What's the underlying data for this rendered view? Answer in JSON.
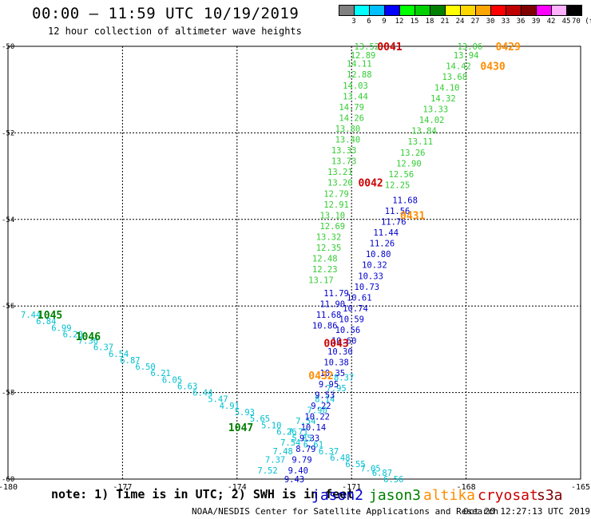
{
  "header": {
    "title": "00:00 – 11:59 UTC 10/19/2019",
    "subtitle": "12 hour collection of altimeter wave heights"
  },
  "color_scale": {
    "labels": [
      "3",
      "6",
      "9",
      "12",
      "15",
      "18",
      "21",
      "24",
      "27",
      "30",
      "33",
      "36",
      "39",
      "42",
      "45",
      "70 (ft)"
    ],
    "colors": [
      "#808080",
      "#00ffff",
      "#00bfff",
      "#0000ff",
      "#00ff00",
      "#00d000",
      "#008000",
      "#ffff00",
      "#ffd700",
      "#ffa500",
      "#ff0000",
      "#c00000",
      "#800000",
      "#ff00ff",
      "#ffb0ff",
      "#000000"
    ]
  },
  "footer": {
    "note": "note: 1) Time is in UTC; 2) SWH is in feet",
    "credit": "NOAA/NESDIS Center for Satellite Applications and Research",
    "timestamp": "Oct 20 12:27:13 UTC 2019"
  },
  "legend": [
    {
      "name": "jason2",
      "color": "#0000cc"
    },
    {
      "name": "jason3",
      "color": "#008000"
    },
    {
      "name": "altika",
      "color": "#ff8c00"
    },
    {
      "name": "cryosat",
      "color": "#cc0000"
    },
    {
      "name": "s3a",
      "color": "#800000"
    }
  ],
  "chart_data": {
    "type": "scatter",
    "title": "00:00 – 11:59 UTC 10/19/2019",
    "xlim": [
      -180,
      -165
    ],
    "ylim": [
      -60,
      -50
    ],
    "x_ticks": [
      "-180",
      "-177",
      "-174",
      "-171",
      "-168",
      "-165"
    ],
    "y_ticks": [
      "-50",
      "-52",
      "-54",
      "-56",
      "-58",
      "-60"
    ],
    "grid": true,
    "pass_labels": [
      {
        "text": "0041",
        "x": -170.0,
        "y": -50.0,
        "color": "#cc0000"
      },
      {
        "text": "0429",
        "x": -166.9,
        "y": -50.0,
        "color": "#ff8c00"
      },
      {
        "text": "0430",
        "x": -167.3,
        "y": -50.45,
        "color": "#ff8c00"
      },
      {
        "text": "0042",
        "x": -170.5,
        "y": -53.15,
        "color": "#cc0000"
      },
      {
        "text": "0431",
        "x": -169.4,
        "y": -53.9,
        "color": "#ff8c00"
      },
      {
        "text": "0043",
        "x": -171.4,
        "y": -56.85,
        "color": "#cc0000"
      },
      {
        "text": "0432",
        "x": -171.8,
        "y": -57.6,
        "color": "#ff8c00"
      },
      {
        "text": "1045",
        "x": -178.9,
        "y": -56.2,
        "color": "#008000"
      },
      {
        "text": "1046",
        "x": -177.9,
        "y": -56.7,
        "color": "#008000"
      },
      {
        "text": "1047",
        "x": -173.9,
        "y": -58.8,
        "color": "#008000"
      }
    ],
    "series": [
      {
        "color": "#00c0d0",
        "points": [
          {
            "x": -179.4,
            "y": -56.2,
            "v": "7.44"
          },
          {
            "x": -179.0,
            "y": -56.35,
            "v": "6.84"
          },
          {
            "x": -178.6,
            "y": -56.5,
            "v": "6.99"
          },
          {
            "x": -178.3,
            "y": -56.65,
            "v": "6.20"
          },
          {
            "x": -177.9,
            "y": -56.8,
            "v": "7.36"
          },
          {
            "x": -177.5,
            "y": -56.95,
            "v": "6.37"
          },
          {
            "x": -177.1,
            "y": -57.1,
            "v": "6.54"
          },
          {
            "x": -176.8,
            "y": -57.25,
            "v": "6.87"
          },
          {
            "x": -176.4,
            "y": -57.4,
            "v": "6.50"
          },
          {
            "x": -176.0,
            "y": -57.55,
            "v": "6.21"
          },
          {
            "x": -175.7,
            "y": -57.7,
            "v": "6.05"
          },
          {
            "x": -175.3,
            "y": -57.85,
            "v": "6.63"
          },
          {
            "x": -174.9,
            "y": -58.0,
            "v": "6.44"
          },
          {
            "x": -174.5,
            "y": -58.15,
            "v": "5.47"
          },
          {
            "x": -174.2,
            "y": -58.3,
            "v": "4.91"
          },
          {
            "x": -173.8,
            "y": -58.45,
            "v": "5.93"
          },
          {
            "x": -173.4,
            "y": -58.6,
            "v": "5.65"
          },
          {
            "x": -173.1,
            "y": -58.75,
            "v": "5.10"
          },
          {
            "x": -172.7,
            "y": -58.9,
            "v": "6.26"
          },
          {
            "x": -172.3,
            "y": -59.05,
            "v": "5.85"
          },
          {
            "x": -172.0,
            "y": -59.2,
            "v": "6.61"
          },
          {
            "x": -171.6,
            "y": -59.35,
            "v": "6.37"
          },
          {
            "x": -171.3,
            "y": -59.5,
            "v": "6.48"
          },
          {
            "x": -170.9,
            "y": -59.65,
            "v": "6.55"
          },
          {
            "x": -170.5,
            "y": -59.75,
            "v": "7.05"
          },
          {
            "x": -170.2,
            "y": -59.85,
            "v": "6.87"
          },
          {
            "x": -169.9,
            "y": -60.0,
            "v": "6.56"
          }
        ]
      },
      {
        "color": "#00c0d0",
        "points": [
          {
            "x": -171.2,
            "y": -57.65,
            "v": "8.37"
          },
          {
            "x": -171.4,
            "y": -57.9,
            "v": "7.95"
          },
          {
            "x": -171.7,
            "y": -58.15,
            "v": "8.14"
          },
          {
            "x": -171.9,
            "y": -58.4,
            "v": "7.90"
          },
          {
            "x": -172.2,
            "y": -58.65,
            "v": "7.54"
          },
          {
            "x": -172.4,
            "y": -58.9,
            "v": "7.71"
          },
          {
            "x": -172.6,
            "y": -59.15,
            "v": "7.54"
          },
          {
            "x": -172.8,
            "y": -59.35,
            "v": "7.48"
          },
          {
            "x": -173.0,
            "y": -59.55,
            "v": "7.37"
          },
          {
            "x": -173.2,
            "y": -59.8,
            "v": "7.52"
          }
        ]
      },
      {
        "color": "#0000cc",
        "points": [
          {
            "x": -169.6,
            "y": -53.55,
            "v": "11.68"
          },
          {
            "x": -169.8,
            "y": -53.8,
            "v": "11.56"
          },
          {
            "x": -169.9,
            "y": -54.05,
            "v": "11.76"
          },
          {
            "x": -170.1,
            "y": -54.3,
            "v": "11.44"
          },
          {
            "x": -170.2,
            "y": -54.55,
            "v": "11.26"
          },
          {
            "x": -170.3,
            "y": -54.8,
            "v": "10.80"
          },
          {
            "x": -170.4,
            "y": -55.05,
            "v": "10.32"
          },
          {
            "x": -170.5,
            "y": -55.3,
            "v": "10.33"
          },
          {
            "x": -170.6,
            "y": -55.55,
            "v": "10.73"
          },
          {
            "x": -170.8,
            "y": -55.8,
            "v": "10.61"
          },
          {
            "x": -170.9,
            "y": -56.05,
            "v": "10.74"
          },
          {
            "x": -171.0,
            "y": -56.3,
            "v": "10.59"
          },
          {
            "x": -171.1,
            "y": -56.55,
            "v": "10.56"
          },
          {
            "x": -171.2,
            "y": -56.8,
            "v": "10.60"
          },
          {
            "x": -171.3,
            "y": -57.05,
            "v": "10.30"
          },
          {
            "x": -171.4,
            "y": -57.3,
            "v": "10.38"
          },
          {
            "x": -171.5,
            "y": -57.55,
            "v": "10.35"
          },
          {
            "x": -171.6,
            "y": -57.8,
            "v": "9.95"
          },
          {
            "x": -171.7,
            "y": -58.05,
            "v": "9.53"
          },
          {
            "x": -171.8,
            "y": -58.3,
            "v": "9.22"
          },
          {
            "x": -171.9,
            "y": -58.55,
            "v": "10.22"
          },
          {
            "x": -172.0,
            "y": -58.8,
            "v": "10.14"
          },
          {
            "x": -172.1,
            "y": -59.05,
            "v": "9.33"
          },
          {
            "x": -172.2,
            "y": -59.3,
            "v": "8.79"
          },
          {
            "x": -172.3,
            "y": -59.55,
            "v": "9.79"
          },
          {
            "x": -172.4,
            "y": -59.8,
            "v": "9.40"
          },
          {
            "x": -172.5,
            "y": -60.0,
            "v": "9.43"
          }
        ]
      },
      {
        "color": "#33cc33",
        "points": [
          {
            "x": -170.6,
            "y": -50.0,
            "v": "13.52"
          },
          {
            "x": -170.7,
            "y": -50.2,
            "v": "12.89"
          },
          {
            "x": -170.8,
            "y": -50.4,
            "v": "14.11"
          },
          {
            "x": -170.8,
            "y": -50.65,
            "v": "12.88"
          },
          {
            "x": -170.9,
            "y": -50.9,
            "v": "14.03"
          },
          {
            "x": -170.9,
            "y": -51.15,
            "v": "13.44"
          },
          {
            "x": -171.0,
            "y": -51.4,
            "v": "14.79"
          },
          {
            "x": -171.0,
            "y": -51.65,
            "v": "14.26"
          },
          {
            "x": -171.1,
            "y": -51.9,
            "v": "13.80"
          },
          {
            "x": -171.1,
            "y": -52.15,
            "v": "13.40"
          },
          {
            "x": -171.2,
            "y": -52.4,
            "v": "13.33"
          },
          {
            "x": -171.2,
            "y": -52.65,
            "v": "13.73"
          },
          {
            "x": -171.3,
            "y": -52.9,
            "v": "13.21"
          },
          {
            "x": -171.3,
            "y": -53.15,
            "v": "13.20"
          },
          {
            "x": -171.4,
            "y": -53.4,
            "v": "12.79"
          },
          {
            "x": -171.4,
            "y": -53.65,
            "v": "12.91"
          },
          {
            "x": -171.5,
            "y": -53.9,
            "v": "13.10"
          },
          {
            "x": -171.5,
            "y": -54.15,
            "v": "12.69"
          },
          {
            "x": -171.6,
            "y": -54.4,
            "v": "13.32"
          },
          {
            "x": -171.6,
            "y": -54.65,
            "v": "12.35"
          },
          {
            "x": -171.7,
            "y": -54.9,
            "v": "12.48"
          },
          {
            "x": -171.7,
            "y": -55.15,
            "v": "12.23"
          },
          {
            "x": -171.8,
            "y": -55.4,
            "v": "13.17"
          }
        ]
      },
      {
        "color": "#33cc33",
        "points": [
          {
            "x": -167.9,
            "y": -50.0,
            "v": "13.06"
          },
          {
            "x": -168.0,
            "y": -50.2,
            "v": "13.94"
          },
          {
            "x": -168.2,
            "y": -50.45,
            "v": "14.42"
          },
          {
            "x": -168.3,
            "y": -50.7,
            "v": "13.68"
          },
          {
            "x": -168.5,
            "y": -50.95,
            "v": "14.10"
          },
          {
            "x": -168.6,
            "y": -51.2,
            "v": "14.32"
          },
          {
            "x": -168.8,
            "y": -51.45,
            "v": "13.33"
          },
          {
            "x": -168.9,
            "y": -51.7,
            "v": "14.02"
          },
          {
            "x": -169.1,
            "y": -51.95,
            "v": "13.84"
          },
          {
            "x": -169.2,
            "y": -52.2,
            "v": "13.11"
          },
          {
            "x": -169.4,
            "y": -52.45,
            "v": "13.26"
          },
          {
            "x": -169.5,
            "y": -52.7,
            "v": "12.90"
          },
          {
            "x": -169.7,
            "y": -52.95,
            "v": "12.56"
          },
          {
            "x": -169.8,
            "y": -53.2,
            "v": "12.25"
          }
        ]
      },
      {
        "color": "#0000cc",
        "points": [
          {
            "x": -171.4,
            "y": -55.7,
            "v": "11.79"
          },
          {
            "x": -171.5,
            "y": -55.95,
            "v": "11.90"
          },
          {
            "x": -171.6,
            "y": -56.2,
            "v": "11.68"
          },
          {
            "x": -171.7,
            "y": -56.45,
            "v": "10.86"
          }
        ]
      }
    ]
  }
}
